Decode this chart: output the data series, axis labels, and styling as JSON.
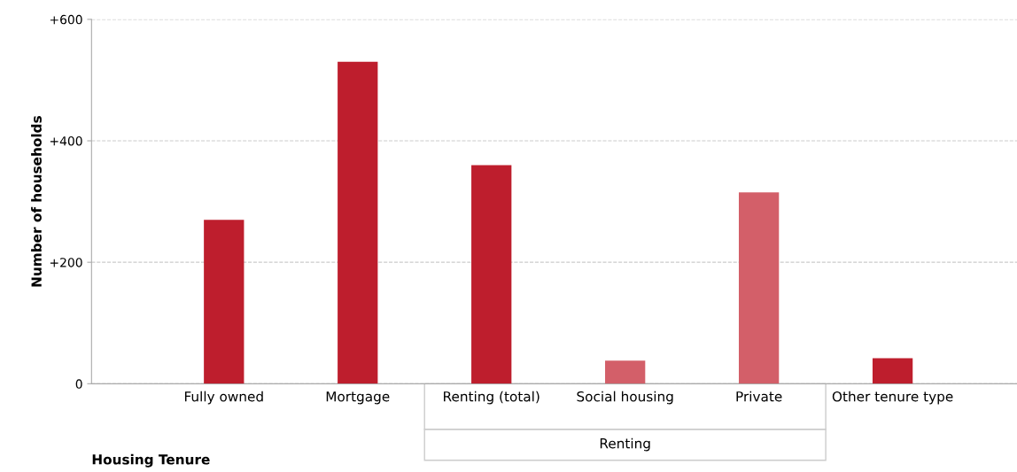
{
  "chart_data": {
    "type": "bar",
    "categories": [
      "Fully owned",
      "Mortgage",
      "Renting (total)",
      "Social housing",
      "Private",
      "Other tenure type"
    ],
    "values": [
      270,
      530,
      360,
      38,
      315,
      42
    ],
    "colors": [
      "#be1e2d",
      "#be1e2d",
      "#be1e2d",
      "#d35f69",
      "#d35f69",
      "#be1e2d"
    ],
    "xlabel": "Housing Tenure",
    "ylabel": "Number of households",
    "ylim": [
      0,
      600
    ],
    "yticks": [
      {
        "value": 0,
        "label": "0"
      },
      {
        "value": 200,
        "label": "+200"
      },
      {
        "value": 400,
        "label": "+400"
      },
      {
        "value": 600,
        "label": "+600"
      }
    ],
    "annotations": [
      "Renting"
    ],
    "grid": "y",
    "legend": false
  }
}
